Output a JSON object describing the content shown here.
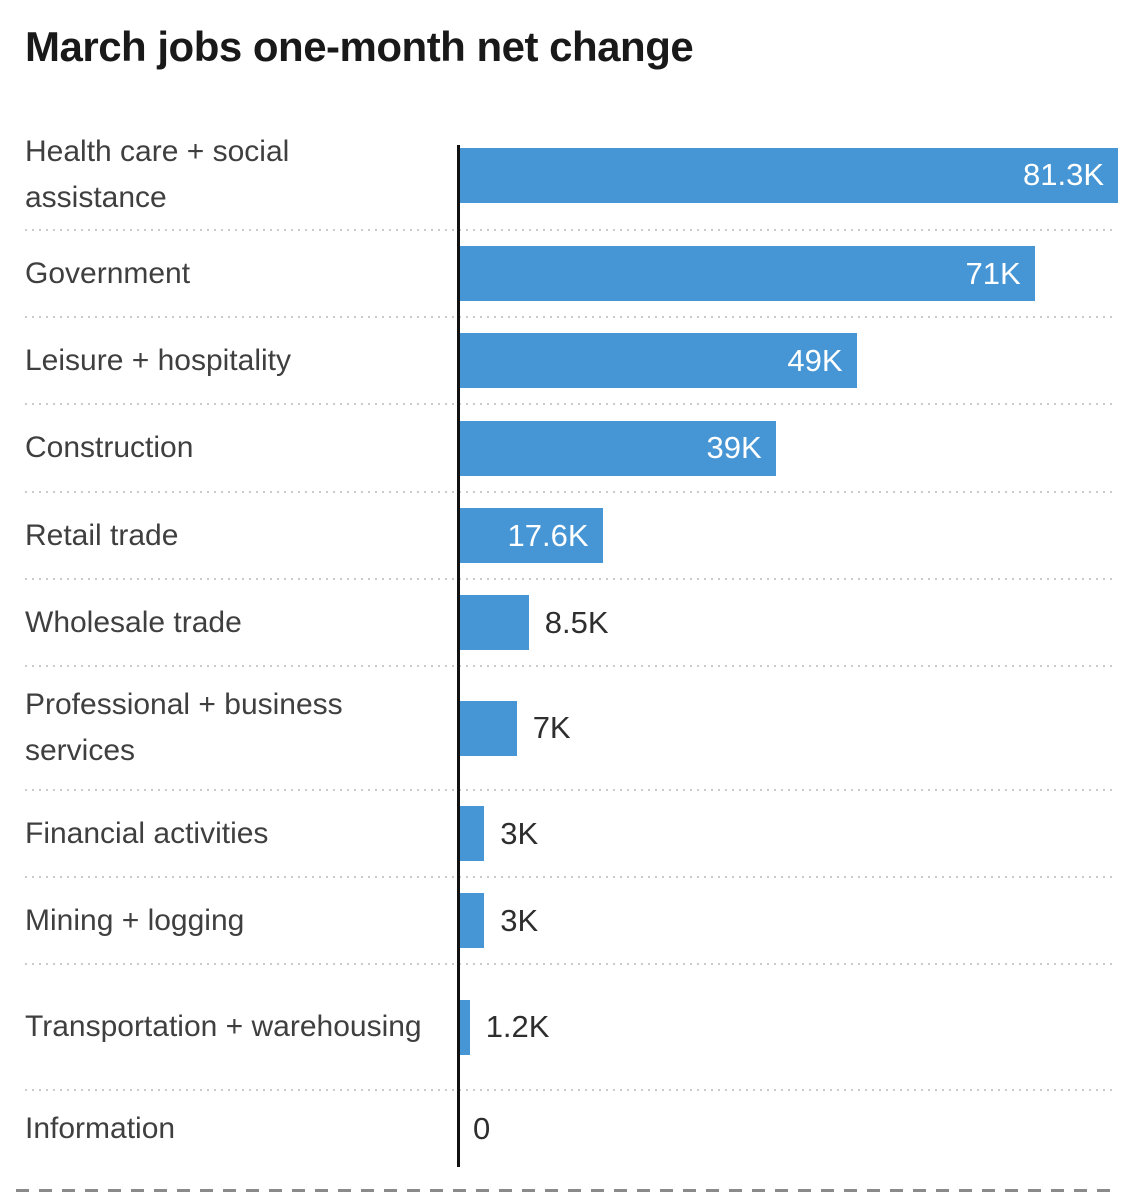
{
  "chart_data": {
    "type": "bar",
    "orientation": "horizontal",
    "title": "March jobs one-month net change",
    "categories": [
      "Health care + social assistance",
      "Government",
      "Leisure + hospitality",
      "Construction",
      "Retail trade",
      "Wholesale trade",
      "Professional + business services",
      "Financial activities",
      "Mining + logging",
      "Transportation + warehousing",
      "Information"
    ],
    "values_k": [
      81.3,
      71,
      49,
      39,
      17.6,
      8.5,
      7,
      3,
      3,
      1.2,
      0
    ],
    "value_labels": [
      "81.3K",
      "71K",
      "49K",
      "39K",
      "17.6K",
      "8.5K",
      "7K",
      "3K",
      "3K",
      "1.2K",
      "0"
    ],
    "xlabel": "",
    "ylabel": "",
    "xlim_k": [
      0,
      85
    ],
    "baseline": 0,
    "grid": "dotted row separators, solid zero axis, dashed bottom rule",
    "legend": "none",
    "colors": {
      "bar": "#4696d6",
      "value_label_inside": "#ffffff",
      "value_label_outside": "#2e2e2e",
      "category_label": "#3f3f3f",
      "title": "#191919",
      "axis": "#111111",
      "separator_dots": "#cbcbcb",
      "bottom_rule_dashes": "#8a8a8a",
      "background": "#ffffff"
    }
  }
}
